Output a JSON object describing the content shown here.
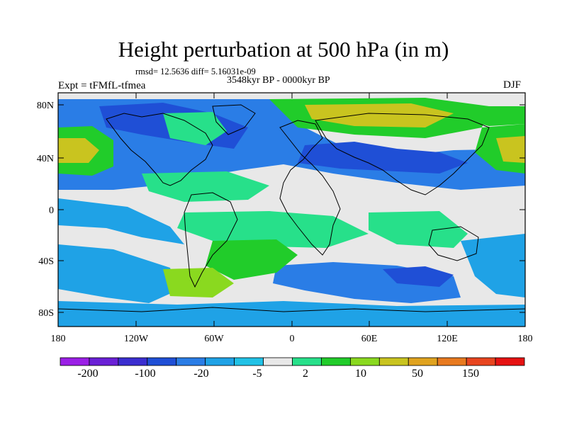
{
  "header": {
    "title": "Height perturbation at 500 hPa (in m)",
    "stats": "rmsd= 12.5636 diff= 5.16031e-09",
    "period": "3548kyr BP - 0000kyr BP",
    "experiment": "Expt = tFMfL-tfmea",
    "season": "DJF"
  },
  "axes": {
    "y_labels": [
      "80N",
      "40N",
      "0",
      "40S",
      "80S"
    ],
    "x_labels": [
      "180",
      "120W",
      "60W",
      "0",
      "60E",
      "120E",
      "180"
    ]
  },
  "colorbar": {
    "labels": [
      "-200",
      "-100",
      "-20",
      "-5",
      "2",
      "10",
      "50",
      "150"
    ],
    "colors": [
      "#9b1fe6",
      "#6a20d6",
      "#3b2ed0",
      "#1f4fd6",
      "#2a7de6",
      "#1fa2e6",
      "#21c2e6",
      "#e8e8e8",
      "#27e08a",
      "#21cc2a",
      "#8ad91f",
      "#c9c41f",
      "#e0a31f",
      "#e87a1f",
      "#e8451f",
      "#e61212"
    ]
  },
  "map_colors": {
    "water": "#e8e8e8",
    "neg_strong": "#1f4fd6",
    "neg_mid": "#2a7de6",
    "neg_weak": "#1fa2e6",
    "pos_weak": "#27e08a",
    "pos_mid": "#21cc2a",
    "pos_strong": "#8ad91f",
    "pos_very": "#c9c41f",
    "pos_peak": "#e0a31f"
  }
}
